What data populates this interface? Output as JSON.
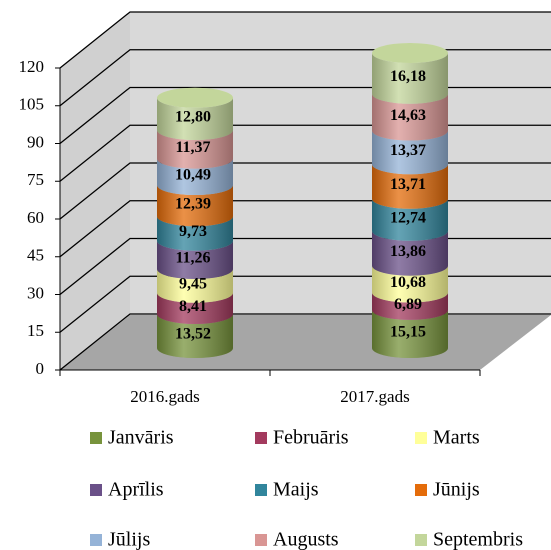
{
  "chart_data": {
    "type": "bar",
    "stacked": true,
    "shape": "cylinder",
    "categories": [
      "2016.gads",
      "2017.gads"
    ],
    "ylim": [
      0,
      120
    ],
    "yticks": [
      0,
      15,
      30,
      45,
      60,
      75,
      90,
      105,
      120
    ],
    "grid": true,
    "series": [
      {
        "name": "Janvāris",
        "color": "#77933c",
        "values": [
          13.52,
          15.15
        ],
        "value_labels": [
          "13,52",
          "15,15"
        ]
      },
      {
        "name": "Februāris",
        "color": "#a33a5e",
        "values": [
          8.41,
          6.89
        ],
        "value_labels": [
          "8,41",
          "6,89"
        ]
      },
      {
        "name": "Marts",
        "color": "#ffff99",
        "values": [
          9.45,
          10.68
        ],
        "value_labels": [
          "9,45",
          "10,68"
        ]
      },
      {
        "name": "Aprīlis",
        "color": "#6a5088",
        "values": [
          11.26,
          13.86
        ],
        "value_labels": [
          "11,26",
          "13,86"
        ]
      },
      {
        "name": "Maijs",
        "color": "#31859c",
        "values": [
          9.73,
          12.74
        ],
        "value_labels": [
          "9,73",
          "12,74"
        ]
      },
      {
        "name": "Jūnijs",
        "color": "#e46c0a",
        "values": [
          12.39,
          13.71
        ],
        "value_labels": [
          "12,39",
          "13,71"
        ]
      },
      {
        "name": "Jūlijs",
        "color": "#95b3d7",
        "values": [
          10.49,
          13.37
        ],
        "value_labels": [
          "10,49",
          "13,37"
        ]
      },
      {
        "name": "Augusts",
        "color": "#d99694",
        "values": [
          11.37,
          14.63
        ],
        "value_labels": [
          "11,37",
          "14,63"
        ]
      },
      {
        "name": "Septembris",
        "color": "#c3d69b",
        "values": [
          12.8,
          16.18
        ],
        "value_labels": [
          "12,80",
          "16,18"
        ]
      }
    ]
  }
}
